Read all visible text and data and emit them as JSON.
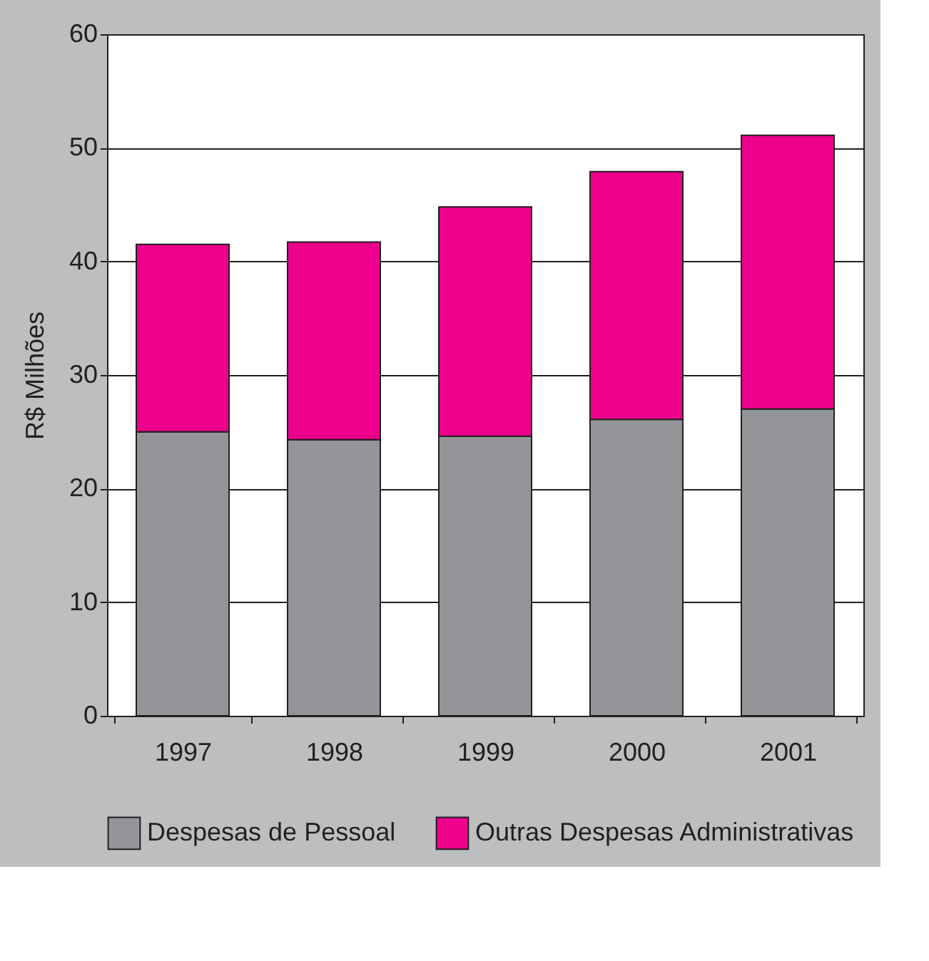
{
  "chart_data": {
    "type": "bar",
    "stacked": true,
    "ylabel": "R$ Milhões",
    "categories": [
      "1997",
      "1998",
      "1999",
      "2000",
      "2001"
    ],
    "series": [
      {
        "name": "Despesas de Pessoal",
        "color": "#939598",
        "values": [
          25.0,
          24.3,
          24.6,
          26.1,
          27.0
        ]
      },
      {
        "name": "Outras Despesas Administrativas",
        "color": "#ec008c",
        "values": [
          16.5,
          17.4,
          20.2,
          21.8,
          24.1
        ]
      }
    ],
    "ylim": [
      0,
      60
    ],
    "yticks": [
      0,
      10,
      20,
      30,
      40,
      50,
      60
    ],
    "grid": "y",
    "legend": "bottom"
  }
}
